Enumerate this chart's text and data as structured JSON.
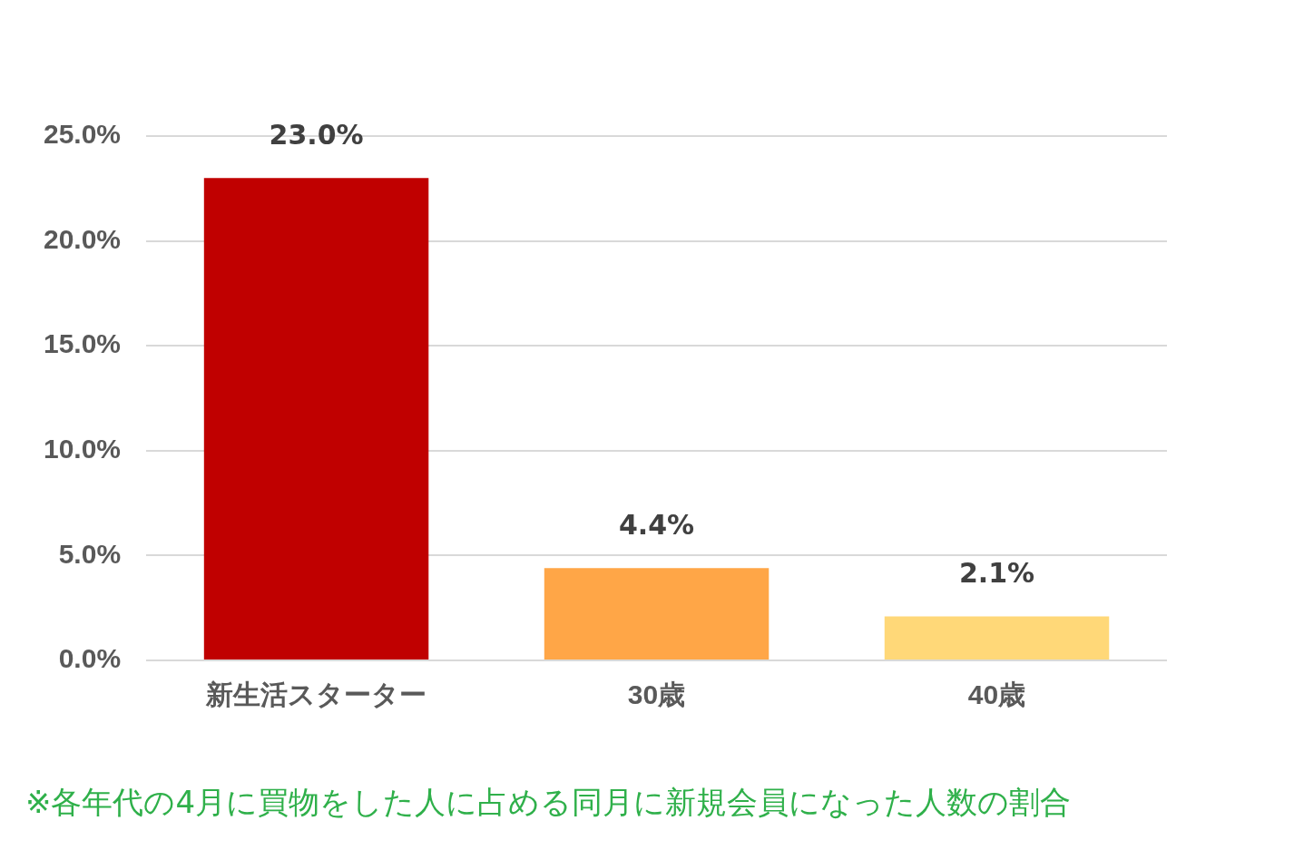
{
  "chart_data": {
    "type": "bar",
    "categories": [
      "新生活スターター",
      "30歳",
      "40歳"
    ],
    "values": [
      23.0,
      4.4,
      2.1
    ],
    "colors": [
      "#c00000",
      "#ffa647",
      "#ffd878"
    ],
    "value_labels": [
      "23.0%",
      "4.4%",
      "2.1%"
    ],
    "ylim": [
      0,
      25
    ],
    "yticks": [
      {
        "value": 0,
        "label": "0.0%"
      },
      {
        "value": 5,
        "label": "5.0%"
      },
      {
        "value": 10,
        "label": "10.0%"
      },
      {
        "value": 15,
        "label": "15.0%"
      },
      {
        "value": 20,
        "label": "20.0%"
      },
      {
        "value": 25,
        "label": "25.0%"
      }
    ],
    "grid": "y",
    "legend": false,
    "annotations": [
      "※各年代の4月に買物をした人に占める同月に新規会員になった人数の割合"
    ]
  }
}
